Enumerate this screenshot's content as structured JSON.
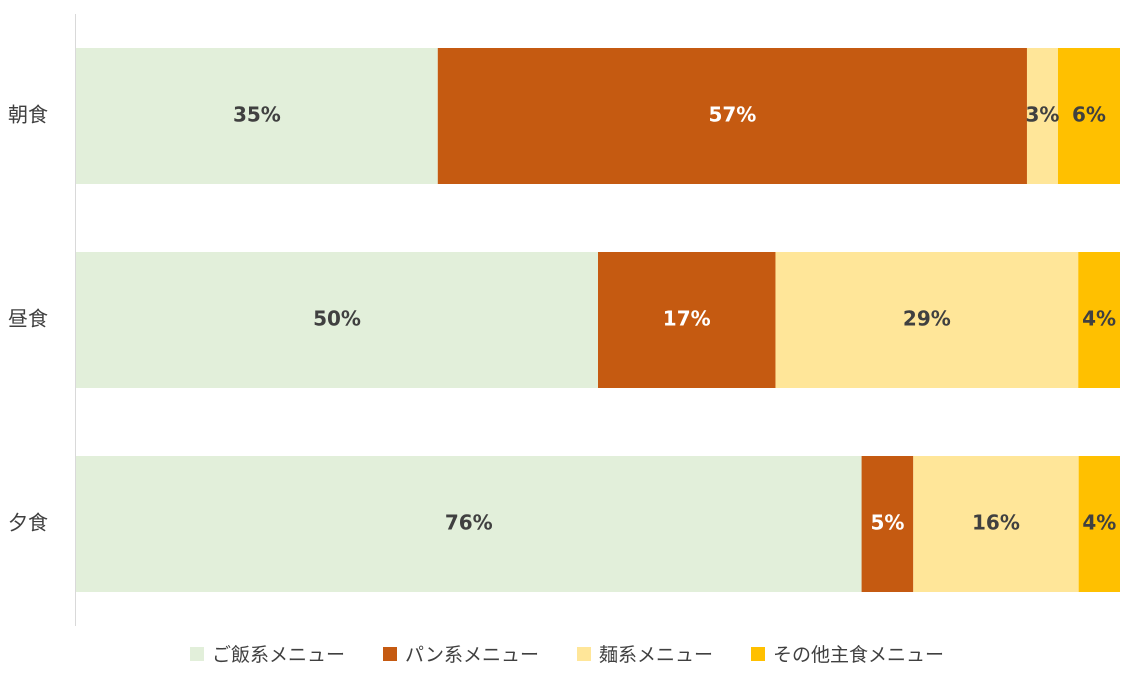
{
  "chart_data": {
    "type": "bar",
    "orientation": "horizontal",
    "stacked": "percent",
    "categories": [
      "朝食",
      "昼食",
      "夕食"
    ],
    "series": [
      {
        "name": "ご飯系メニュー",
        "values": [
          35,
          50,
          76
        ],
        "color": "#E2EFDA",
        "label_color": "#404040"
      },
      {
        "name": "パン系メニュー",
        "values": [
          57,
          17,
          5
        ],
        "color": "#C55A11",
        "label_color": "#ffffff"
      },
      {
        "name": "麺系メニュー",
        "values": [
          3,
          29,
          16
        ],
        "color": "#FFE699",
        "label_color": "#404040"
      },
      {
        "name": "その他主食メニュー",
        "values": [
          6,
          4,
          4
        ],
        "color": "#FFC000",
        "label_color": "#404040"
      }
    ],
    "value_format": "{v}%",
    "xlim": [
      0,
      100
    ],
    "grid": false,
    "legend_position": "bottom"
  }
}
